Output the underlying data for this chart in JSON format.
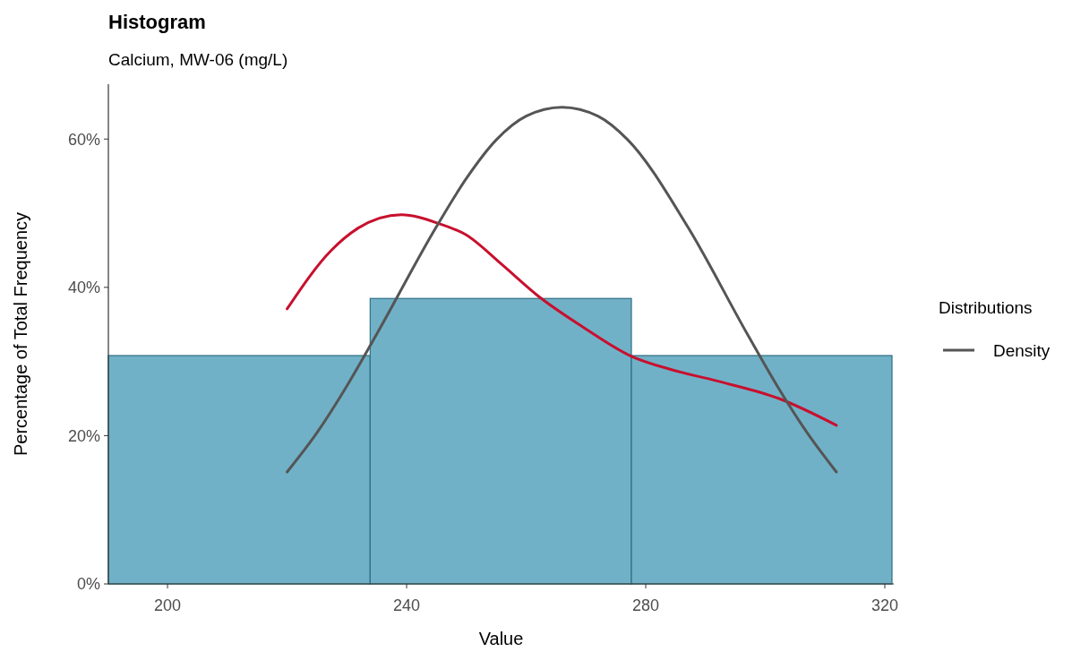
{
  "chart_data": {
    "type": "histogram",
    "title": "Histogram",
    "subtitle": "Calcium, MW-06 (mg/L)",
    "xlabel": "Value",
    "ylabel": "Percentage of Total Frequency",
    "legend_title": "Distributions",
    "legend": "right",
    "grid": false,
    "bins": [
      190.1,
      233.9,
      277.6,
      321.2
    ],
    "values": [
      30.8,
      38.5,
      30.8
    ],
    "color": "#71b1c7",
    "xlim": [
      190.1,
      321.5
    ],
    "xticks": [
      200,
      240,
      280,
      320
    ],
    "ylim": [
      0,
      67.4
    ],
    "yticks": [
      {
        "value": 0,
        "label": "0%"
      },
      {
        "value": 20,
        "label": "20%"
      },
      {
        "value": 40,
        "label": "40%"
      },
      {
        "value": 60,
        "label": "60%"
      }
    ],
    "series": [
      {
        "type": "line",
        "color": "#c8102e",
        "x": [
          220,
          227.4,
          231.9,
          239.1,
          245.4,
          249.9,
          255.9,
          261.9,
          269.4,
          277.6,
          284.3,
          291.8,
          302.3,
          311.9
        ],
        "values": [
          37.1,
          45,
          48,
          49.8,
          48.6,
          47.1,
          43.1,
          38.9,
          34.7,
          30.7,
          28.9,
          27.4,
          25,
          21.4
        ]
      },
      {
        "type": "line",
        "name": "Density",
        "color": "#555555",
        "x": [
          220,
          225,
          230,
          235,
          245,
          250,
          255,
          260,
          266,
          272,
          277,
          287,
          297,
          302,
          307,
          311.9
        ],
        "values": [
          15.1,
          20.4,
          26.7,
          33.7,
          48.2,
          54.7,
          59.9,
          63.1,
          64.3,
          63.1,
          59.9,
          48.2,
          33.7,
          26.7,
          20.4,
          15.1
        ]
      }
    ]
  }
}
